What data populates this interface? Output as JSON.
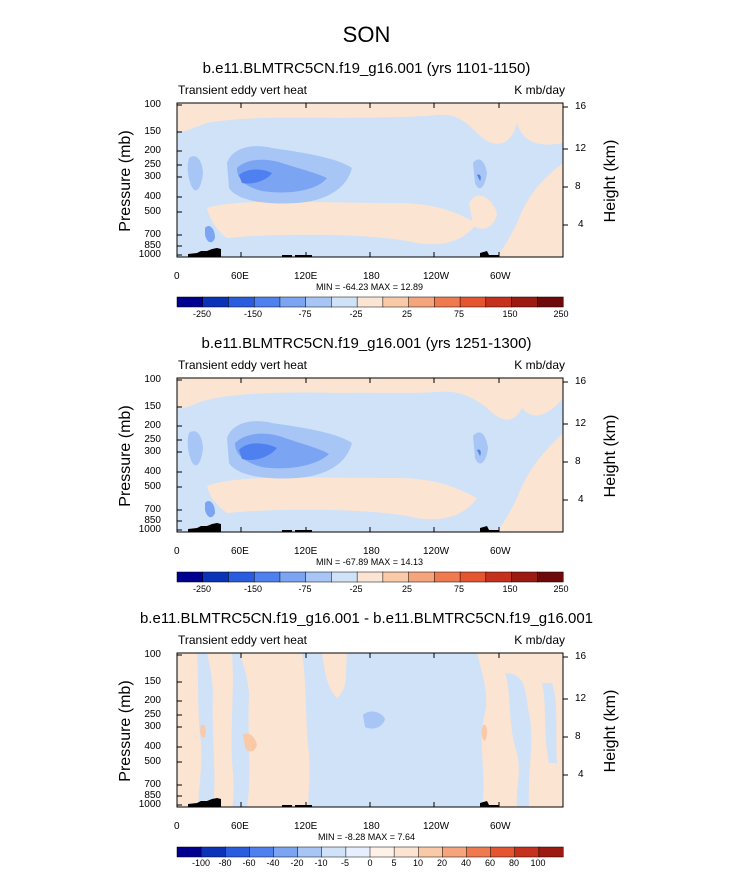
{
  "title": "SON",
  "chart_data": [
    {
      "type": "heatmap",
      "title": "b.e11.BLMTRC5CN.f19_g16.001 (yrs 1101-1150)",
      "left_string": "Transient eddy vert heat",
      "right_string": "K mb/day",
      "ylabel": "Pressure (mb)",
      "ylabel_right": "Height (km)",
      "x_ticks": [
        "0",
        "60E",
        "120E",
        "180",
        "120W",
        "60W"
      ],
      "y_ticks": [
        "100",
        "150",
        "200",
        "250",
        "300",
        "400",
        "500",
        "700",
        "850",
        "1000"
      ],
      "y_ticks_right": [
        "16",
        "12",
        "8",
        "4"
      ],
      "min_max_text": "MIN = -64.23  MAX = 12.89",
      "colorbar_labels": [
        "-250",
        "-150",
        "-75",
        "-25",
        "25",
        "75",
        "150",
        "250"
      ]
    },
    {
      "type": "heatmap",
      "title": "b.e11.BLMTRC5CN.f19_g16.001 (yrs 1251-1300)",
      "left_string": "Transient eddy vert heat",
      "right_string": "K mb/day",
      "ylabel": "Pressure (mb)",
      "ylabel_right": "Height (km)",
      "x_ticks": [
        "0",
        "60E",
        "120E",
        "180",
        "120W",
        "60W"
      ],
      "y_ticks": [
        "100",
        "150",
        "200",
        "250",
        "300",
        "400",
        "500",
        "700",
        "850",
        "1000"
      ],
      "y_ticks_right": [
        "16",
        "12",
        "8",
        "4"
      ],
      "min_max_text": "MIN = -67.89  MAX = 14.13",
      "colorbar_labels": [
        "-250",
        "-150",
        "-75",
        "-25",
        "25",
        "75",
        "150",
        "250"
      ]
    },
    {
      "type": "heatmap",
      "title": "b.e11.BLMTRC5CN.f19_g16.001 - b.e11.BLMTRC5CN.f19_g16.001",
      "left_string": "Transient eddy vert heat",
      "right_string": "K mb/day",
      "ylabel": "Pressure (mb)",
      "ylabel_right": "Height (km)",
      "x_ticks": [
        "0",
        "60E",
        "120E",
        "180",
        "120W",
        "60W"
      ],
      "y_ticks": [
        "100",
        "150",
        "200",
        "250",
        "300",
        "400",
        "500",
        "700",
        "850",
        "1000"
      ],
      "y_ticks_right": [
        "16",
        "12",
        "8",
        "4"
      ],
      "min_max_text": "MIN = -8.28  MAX = 7.64",
      "colorbar_labels": [
        "-100",
        "-80",
        "-60",
        "-40",
        "-20",
        "-10",
        "-5",
        "0",
        "5",
        "10",
        "20",
        "40",
        "60",
        "80",
        "100"
      ]
    }
  ],
  "colorbar_colors_main": [
    "#000090",
    "#0a33b8",
    "#2a5ce0",
    "#4f80f0",
    "#7ba4f3",
    "#a8c6f5",
    "#cfe2f8",
    "#fbe4d2",
    "#f9c9a8",
    "#f6a47c",
    "#f07a50",
    "#e55530",
    "#c6311e",
    "#9c1a12",
    "#6e0a0a"
  ],
  "colorbar_colors_diff": [
    "#000090",
    "#0a33b8",
    "#2a5ce0",
    "#4f80f0",
    "#7ba4f3",
    "#a8c6f5",
    "#cfe2f8",
    "#e5efff",
    "#fdf1e8",
    "#fbe4d2",
    "#f9c9a8",
    "#f6a47c",
    "#f07a50",
    "#e55530",
    "#c6311e",
    "#9c1a12"
  ]
}
